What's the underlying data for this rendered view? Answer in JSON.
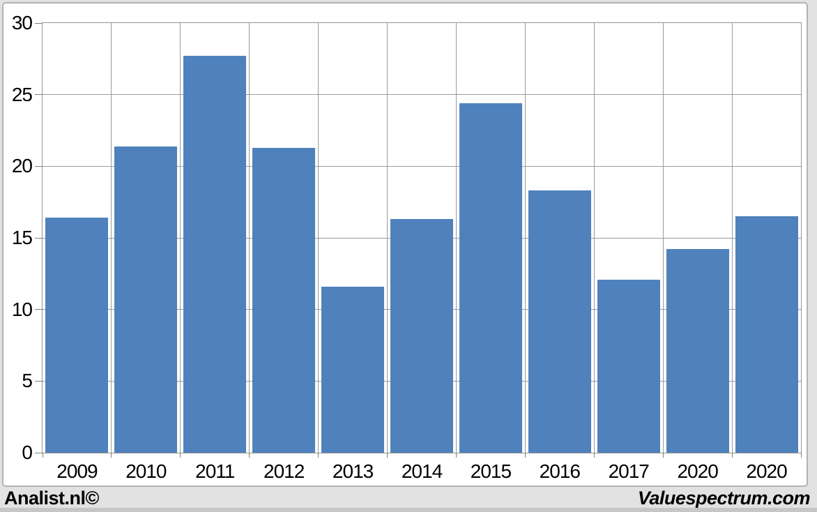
{
  "chart_data": {
    "type": "bar",
    "categories": [
      "2009",
      "2010",
      "2011",
      "2012",
      "2013",
      "2014",
      "2015",
      "2016",
      "2017",
      "2020",
      "2020"
    ],
    "values": [
      16.4,
      21.4,
      27.7,
      21.3,
      11.6,
      16.3,
      24.4,
      18.3,
      12.1,
      14.2,
      16.5
    ],
    "title": "",
    "xlabel": "",
    "ylabel": "",
    "ylim": [
      0,
      30
    ],
    "yticks": [
      0,
      5,
      10,
      15,
      20,
      25,
      30
    ],
    "grid": true,
    "legend": false,
    "bar_color": "#4f81bd",
    "bar_width_fraction": 0.91
  },
  "colors": {
    "bar": "#4f81bd",
    "gridline": "#9a9a9a",
    "plot_border": "#949494",
    "page_background": "#e2e2e2",
    "card_background": "#ffffff",
    "text": "#000000"
  },
  "footer": {
    "left": "Analist.nl©",
    "right": "Valuespectrum.com"
  }
}
